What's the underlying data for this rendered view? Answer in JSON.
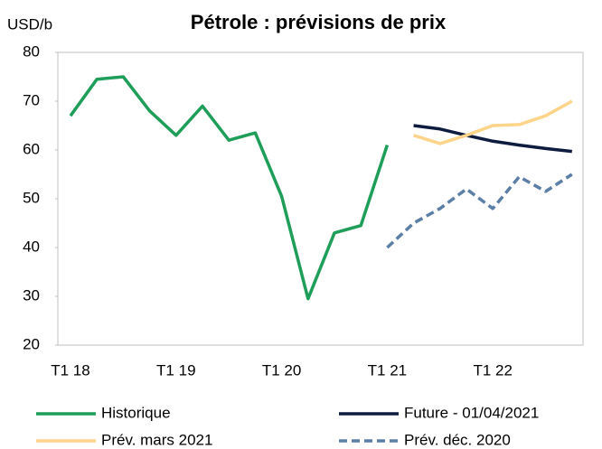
{
  "chart_data": {
    "type": "line",
    "title": "Pétrole : prévisions de prix",
    "y_axis_label": "USD/b",
    "categories": [
      "T1 18",
      null,
      null,
      null,
      "T1 19",
      null,
      null,
      null,
      "T1 20",
      null,
      null,
      null,
      "T1 21",
      null,
      null,
      null,
      "T1 22",
      null,
      null,
      null
    ],
    "series": [
      {
        "name": "Historique",
        "color": "#1f9e5a",
        "dash": false,
        "values": [
          67,
          74.5,
          75,
          68,
          63,
          69,
          62,
          63.5,
          50.5,
          29.5,
          43,
          44.5,
          61,
          null,
          null,
          null,
          null,
          null,
          null,
          null
        ]
      },
      {
        "name": "Future - 01/04/2021",
        "color": "#0d1b3e",
        "dash": false,
        "values": [
          null,
          null,
          null,
          null,
          null,
          null,
          null,
          null,
          null,
          null,
          null,
          null,
          null,
          65,
          64.3,
          63,
          61.8,
          61,
          60.3,
          59.7
        ]
      },
      {
        "name": "Prév. mars 2021",
        "color": "#fdd48a",
        "dash": false,
        "values": [
          null,
          null,
          null,
          null,
          null,
          null,
          null,
          null,
          null,
          null,
          null,
          null,
          null,
          63,
          61.3,
          63,
          65,
          65.2,
          67,
          70
        ]
      },
      {
        "name": "Prév. déc. 2020",
        "color": "#5b7fa6",
        "dash": true,
        "values": [
          null,
          null,
          null,
          null,
          null,
          null,
          null,
          null,
          null,
          null,
          null,
          null,
          40,
          45,
          48,
          52,
          48,
          54.5,
          51.5,
          55
        ]
      }
    ],
    "ylim": [
      20,
      80
    ],
    "yticks": [
      20,
      30,
      40,
      50,
      60,
      70,
      80
    ],
    "grid": false
  }
}
